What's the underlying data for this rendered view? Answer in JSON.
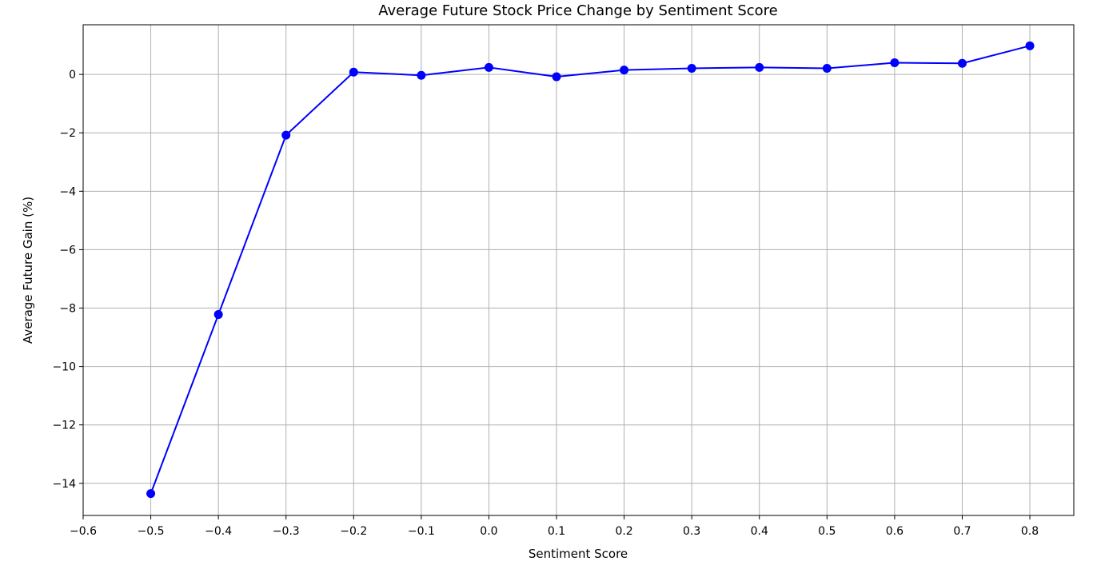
{
  "chart_data": {
    "type": "line",
    "title": "Average Future Stock Price Change by Sentiment Score",
    "xlabel": "Sentiment Score",
    "ylabel": "Average Future Gain (%)",
    "x_ticks": [
      -0.6,
      -0.5,
      -0.4,
      -0.3,
      -0.2,
      -0.1,
      0.0,
      0.1,
      0.2,
      0.3,
      0.4,
      0.5,
      0.6,
      0.7,
      0.8
    ],
    "x_tick_labels": [
      "−0.6",
      "−0.5",
      "−0.4",
      "−0.3",
      "−0.2",
      "−0.1",
      "0.0",
      "0.1",
      "0.2",
      "0.3",
      "0.4",
      "0.5",
      "0.6",
      "0.7",
      "0.8"
    ],
    "y_ticks": [
      -14,
      -12,
      -10,
      -8,
      -6,
      -4,
      -2,
      0
    ],
    "y_tick_labels": [
      "−14",
      "−12",
      "−10",
      "−8",
      "−6",
      "−4",
      "−2",
      "0"
    ],
    "xlim": [
      -0.6,
      0.865
    ],
    "ylim": [
      -15.1,
      1.7
    ],
    "grid": true,
    "series": [
      {
        "color": "#0000ff",
        "marker": "circle",
        "x": [
          -0.5,
          -0.4,
          -0.3,
          -0.2,
          -0.1,
          0.0,
          0.1,
          0.2,
          0.3,
          0.4,
          0.5,
          0.6,
          0.7,
          0.8
        ],
        "y": [
          -14.35,
          -8.22,
          -2.08,
          0.08,
          -0.03,
          0.24,
          -0.08,
          0.15,
          0.21,
          0.24,
          0.21,
          0.4,
          0.38,
          0.98
        ]
      }
    ]
  }
}
